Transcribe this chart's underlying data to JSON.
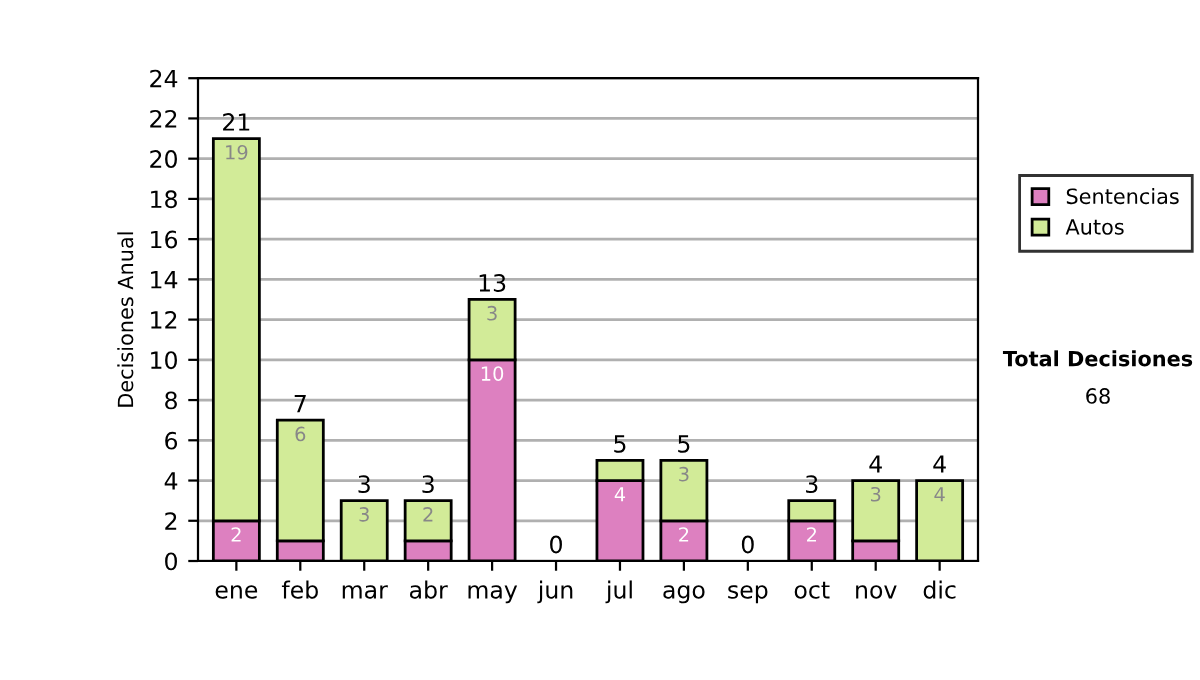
{
  "chart_data": {
    "type": "bar",
    "stacked": true,
    "ylabel": "Decisiones Anual",
    "categories": [
      "ene",
      "feb",
      "mar",
      "abr",
      "may",
      "jun",
      "jul",
      "ago",
      "sep",
      "oct",
      "nov",
      "dic"
    ],
    "series": [
      {
        "name": "Sentencias",
        "color": "#dd80c0",
        "values": [
          2,
          1,
          0,
          1,
          10,
          0,
          4,
          2,
          0,
          2,
          1,
          0
        ],
        "value_labels": [
          "2",
          null,
          null,
          null,
          "10",
          null,
          "4",
          "2",
          null,
          "2",
          null,
          null
        ]
      },
      {
        "name": "Autos",
        "color": "#d2eb98",
        "values": [
          19,
          6,
          3,
          2,
          3,
          0,
          1,
          3,
          0,
          1,
          3,
          4
        ],
        "value_labels": [
          "19",
          "6",
          "3",
          "2",
          "3",
          null,
          null,
          "3",
          null,
          null,
          "3",
          "4"
        ]
      }
    ],
    "totals": [
      "21",
      "7",
      "3",
      "3",
      "13",
      "0",
      "5",
      "5",
      "0",
      "3",
      "4",
      "4"
    ],
    "ylim": [
      0,
      24
    ],
    "yticks": [
      0,
      2,
      4,
      6,
      8,
      10,
      12,
      14,
      16,
      18,
      20,
      22,
      24
    ],
    "grid": "y",
    "legend": "right",
    "annotations": [
      "Total Decisiones",
      "68"
    ]
  }
}
